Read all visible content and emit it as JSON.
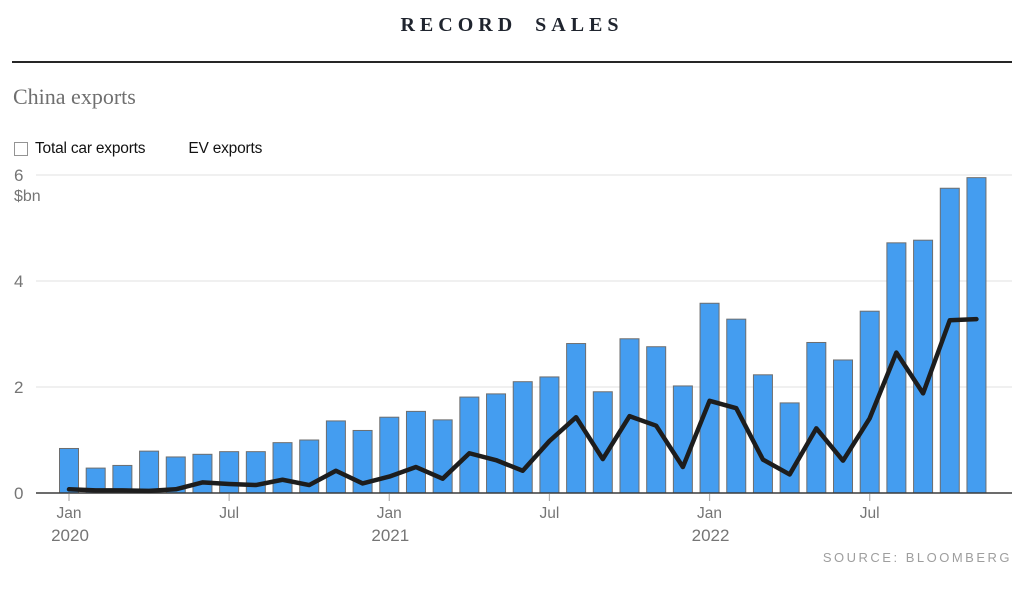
{
  "header": {
    "title": "RECORD SALES"
  },
  "subtitle": "China exports",
  "legend": {
    "bar_label": "Total car exports",
    "line_label": "EV exports"
  },
  "source": "SOURCE: BLOOMBERG",
  "chart_data": {
    "type": "bar",
    "title": "RECORD SALES",
    "subtitle": "China exports",
    "ylabel": "$bn",
    "xlabel": "",
    "ylim": [
      0,
      6
    ],
    "y_ticks": [
      0,
      2,
      4,
      6
    ],
    "grid": true,
    "legend_position": "top-left",
    "categories": [
      "Jan 2020",
      "Feb 2020",
      "Mar 2020",
      "Apr 2020",
      "May 2020",
      "Jun 2020",
      "Jul 2020",
      "Aug 2020",
      "Sep 2020",
      "Oct 2020",
      "Nov 2020",
      "Dec 2020",
      "Jan 2021",
      "Feb 2021",
      "Mar 2021",
      "Apr 2021",
      "May 2021",
      "Jun 2021",
      "Jul 2021",
      "Aug 2021",
      "Sep 2021",
      "Oct 2021",
      "Nov 2021",
      "Dec 2021",
      "Jan 2022",
      "Feb 2022",
      "Mar 2022",
      "Apr 2022",
      "May 2022",
      "Jun 2022",
      "Jul 2022",
      "Aug 2022",
      "Sep 2022",
      "Oct 2022",
      "Nov 2022"
    ],
    "x_tick_marks": [
      {
        "index": 0,
        "month": "Jan",
        "year": "2020"
      },
      {
        "index": 6,
        "month": "Jul",
        "year": ""
      },
      {
        "index": 12,
        "month": "Jan",
        "year": "2021"
      },
      {
        "index": 18,
        "month": "Jul",
        "year": ""
      },
      {
        "index": 24,
        "month": "Jan",
        "year": "2022"
      },
      {
        "index": 30,
        "month": "Jul",
        "year": ""
      }
    ],
    "series": [
      {
        "name": "Total car exports",
        "kind": "bar",
        "values": [
          0.84,
          0.47,
          0.52,
          0.79,
          0.68,
          0.73,
          0.78,
          0.78,
          0.95,
          1.0,
          1.36,
          1.18,
          1.43,
          1.54,
          1.38,
          1.81,
          1.87,
          2.1,
          2.19,
          2.82,
          1.91,
          2.91,
          2.76,
          2.02,
          3.58,
          3.28,
          2.23,
          1.7,
          2.84,
          2.51,
          3.43,
          4.72,
          4.77,
          5.75,
          5.95
        ]
      },
      {
        "name": "EV exports",
        "kind": "line",
        "values": [
          0.07,
          0.05,
          0.05,
          0.04,
          0.07,
          0.2,
          0.17,
          0.15,
          0.25,
          0.15,
          0.42,
          0.18,
          0.31,
          0.49,
          0.27,
          0.75,
          0.62,
          0.42,
          0.98,
          1.43,
          0.64,
          1.45,
          1.27,
          0.49,
          1.74,
          1.6,
          0.63,
          0.35,
          1.22,
          0.61,
          1.41,
          2.65,
          1.88,
          3.26,
          3.28
        ]
      }
    ],
    "colors": {
      "bar_fill": "#449df0",
      "bar_border": "#6e6e6e",
      "line": "#1d1d1d",
      "grid": "#e1e1e1",
      "axis": "#3c3c3c",
      "tick": "#b3b3b3",
      "label": "#757575"
    }
  }
}
